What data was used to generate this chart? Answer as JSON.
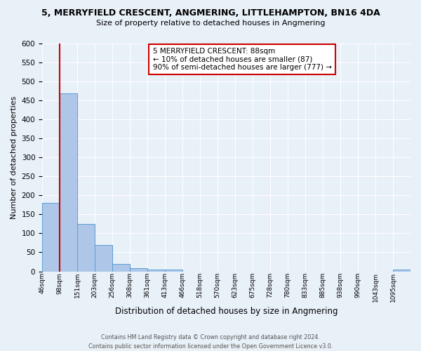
{
  "title": "5, MERRYFIELD CRESCENT, ANGMERING, LITTLEHAMPTON, BN16 4DA",
  "subtitle": "Size of property relative to detached houses in Angmering",
  "xlabel": "Distribution of detached houses by size in Angmering",
  "ylabel": "Number of detached properties",
  "bin_labels": [
    "46sqm",
    "98sqm",
    "151sqm",
    "203sqm",
    "256sqm",
    "308sqm",
    "361sqm",
    "413sqm",
    "466sqm",
    "518sqm",
    "570sqm",
    "623sqm",
    "675sqm",
    "728sqm",
    "780sqm",
    "833sqm",
    "885sqm",
    "938sqm",
    "990sqm",
    "1043sqm",
    "1095sqm"
  ],
  "bar_heights": [
    180,
    468,
    125,
    70,
    20,
    8,
    4,
    5,
    0,
    0,
    0,
    0,
    0,
    0,
    0,
    0,
    0,
    0,
    0,
    0,
    5
  ],
  "bar_color": "#aec6e8",
  "bar_edge_color": "#5a9fd4",
  "ylim": [
    0,
    600
  ],
  "yticks": [
    0,
    50,
    100,
    150,
    200,
    250,
    300,
    350,
    400,
    450,
    500,
    550,
    600
  ],
  "vline_color": "#cc0000",
  "annotation_title": "5 MERRYFIELD CRESCENT: 88sqm",
  "annotation_line1": "← 10% of detached houses are smaller (87)",
  "annotation_line2": "90% of semi-detached houses are larger (777) →",
  "annotation_box_color": "#cc0000",
  "footer_line1": "Contains HM Land Registry data © Crown copyright and database right 2024.",
  "footer_line2": "Contains public sector information licensed under the Open Government Licence v3.0.",
  "background_color": "#e8f0f8",
  "plot_bg_color": "#e8f0f8",
  "grid_color": "#ffffff"
}
